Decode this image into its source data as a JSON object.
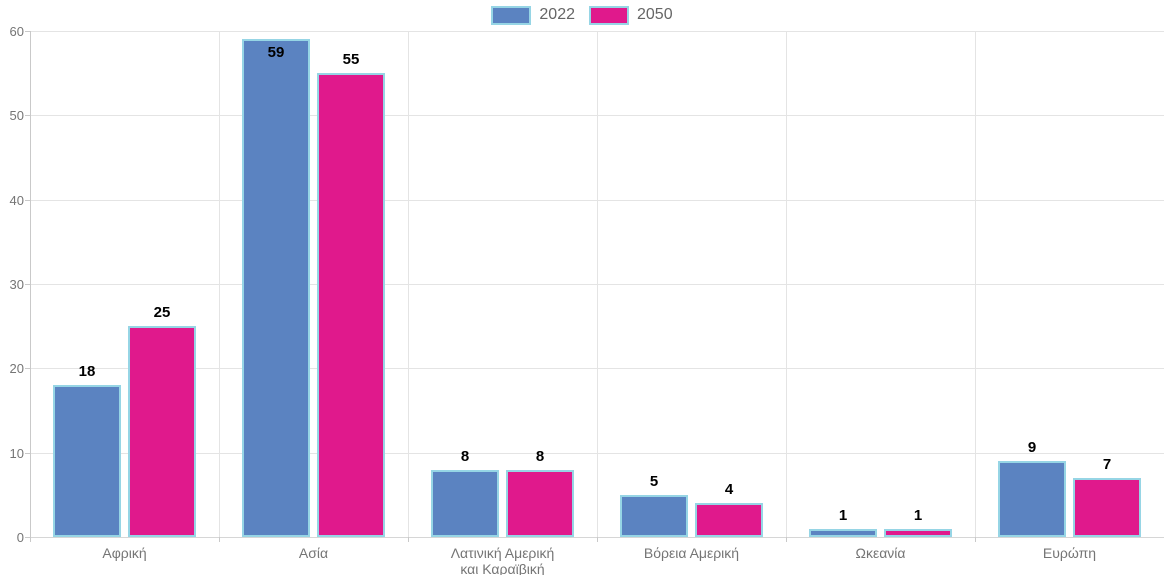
{
  "chart_data": {
    "type": "bar",
    "title": "",
    "xlabel": "",
    "ylabel": "",
    "categories": [
      "Αφρική",
      "Ασία",
      "Λατινική Αμερική\nκαι Καραϊβική",
      "Βόρεια Αμερική",
      "Ωκεανία",
      "Ευρώπη"
    ],
    "series": [
      {
        "name": "2022",
        "color": "#5b83c1",
        "values": [
          18,
          59,
          8,
          5,
          1,
          9
        ]
      },
      {
        "name": "2050",
        "color": "#e0198c",
        "values": [
          25,
          55,
          8,
          4,
          1,
          7
        ]
      }
    ],
    "ylim": [
      0,
      60
    ],
    "yticks": [
      0,
      10,
      20,
      30,
      40,
      50,
      60
    ],
    "grid": true,
    "legend_position": "top-center",
    "value_labels": true,
    "bar_border_color": "#96d5e5",
    "gridline_color": "#e4e4e4",
    "axis_color": "#c9c9c9",
    "tick_label_color": "#757575",
    "value_label_color": "#000000",
    "legend_text_color": "#666666"
  }
}
